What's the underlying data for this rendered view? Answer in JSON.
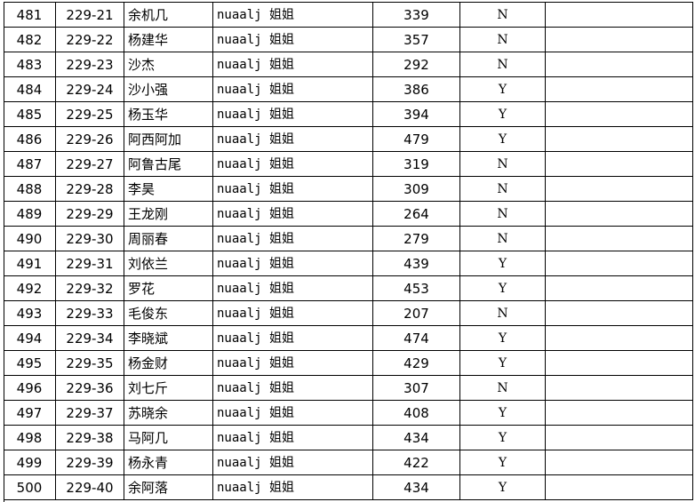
{
  "table": {
    "rows": [
      [
        "481",
        "229-21",
        "余机几",
        "nuaalj 姐姐",
        "339",
        "N"
      ],
      [
        "482",
        "229-22",
        "杨建华",
        "nuaalj 姐姐",
        "357",
        "N"
      ],
      [
        "483",
        "229-23",
        "沙杰",
        "nuaalj 姐姐",
        "292",
        "N"
      ],
      [
        "484",
        "229-24",
        "沙小强",
        "nuaalj 姐姐",
        "386",
        "Y"
      ],
      [
        "485",
        "229-25",
        "杨玉华",
        "nuaalj 姐姐",
        "394",
        "Y"
      ],
      [
        "486",
        "229-26",
        "阿西阿加",
        "nuaalj 姐姐",
        "479",
        "Y"
      ],
      [
        "487",
        "229-27",
        "阿鲁古尾",
        "nuaalj 姐姐",
        "319",
        "N"
      ],
      [
        "488",
        "229-28",
        "李昊",
        "nuaalj 姐姐",
        "309",
        "N"
      ],
      [
        "489",
        "229-29",
        "王龙刚",
        "nuaalj 姐姐",
        "264",
        "N"
      ],
      [
        "490",
        "229-30",
        "周丽春",
        "nuaalj 姐姐",
        "279",
        "N"
      ],
      [
        "491",
        "229-31",
        "刘依兰",
        "nuaalj 姐姐",
        "439",
        "Y"
      ],
      [
        "492",
        "229-32",
        "罗花",
        "nuaalj 姐姐",
        "453",
        "Y"
      ],
      [
        "493",
        "229-33",
        "毛俊东",
        "nuaalj 姐姐",
        "207",
        "N"
      ],
      [
        "494",
        "229-34",
        "李晓斌",
        "nuaalj 姐姐",
        "474",
        "Y"
      ],
      [
        "495",
        "229-35",
        "杨金财",
        "nuaalj 姐姐",
        "429",
        "Y"
      ],
      [
        "496",
        "229-36",
        "刘七斤",
        "nuaalj 姐姐",
        "307",
        "N"
      ],
      [
        "497",
        "229-37",
        "苏晓余",
        "nuaalj 姐姐",
        "408",
        "Y"
      ],
      [
        "498",
        "229-38",
        "马阿几",
        "nuaalj 姐姐",
        "434",
        "Y"
      ],
      [
        "499",
        "229-39",
        "杨永青",
        "nuaalj 姐姐",
        "422",
        "Y"
      ],
      [
        "500",
        "229-40",
        "余阿落",
        "nuaalj 姐姐",
        "434",
        "Y"
      ]
    ]
  }
}
